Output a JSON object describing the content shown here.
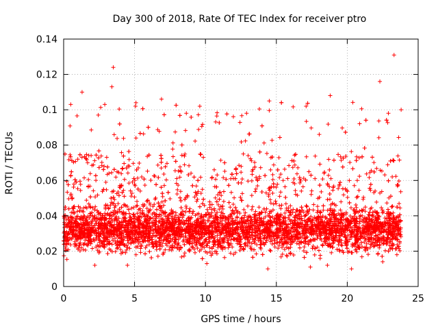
{
  "chart_data": {
    "type": "scatter",
    "title": "Day 300 of 2018, Rate Of TEC Index for receiver ptro",
    "xlabel": "GPS time / hours",
    "ylabel": "ROTI / TECUs",
    "xlim": [
      0,
      25
    ],
    "ylim": [
      0,
      0.14
    ],
    "x_ticks": [
      0,
      5,
      10,
      15,
      20,
      25
    ],
    "y_ticks": [
      0,
      0.02,
      0.04,
      0.06,
      0.08,
      0.1,
      0.12,
      0.14
    ],
    "x_tick_labels": [
      "0",
      "5",
      "10",
      "15",
      "20",
      "25"
    ],
    "y_tick_labels": [
      "0",
      "0.02",
      "0.04",
      "0.06",
      "0.08",
      "0.1",
      "0.12",
      "0.14"
    ],
    "grid": true,
    "marker": "+",
    "marker_color": "#ff0000",
    "series": [
      {
        "name": "ROTI",
        "description_of_distribution": "dense cloud, core 0.02-0.045, spikes to ~0.105",
        "x_range": [
          0,
          23.8
        ],
        "notable_points": [
          {
            "x": 3.5,
            "y": 0.124
          },
          {
            "x": 3.4,
            "y": 0.113
          },
          {
            "x": 1.3,
            "y": 0.11
          },
          {
            "x": 22.3,
            "y": 0.116
          },
          {
            "x": 23.3,
            "y": 0.131
          },
          {
            "x": 14.5,
            "y": 0.105
          },
          {
            "x": 5.1,
            "y": 0.104
          },
          {
            "x": 0.5,
            "y": 0.103
          },
          {
            "x": 9.6,
            "y": 0.102
          },
          {
            "x": 18.8,
            "y": 0.108
          },
          {
            "x": 17.1,
            "y": 0.102
          },
          {
            "x": 6.9,
            "y": 0.106
          },
          {
            "x": 12.9,
            "y": 0.098
          },
          {
            "x": 2.9,
            "y": 0.103
          },
          {
            "x": 22.9,
            "y": 0.098
          },
          {
            "x": 23.8,
            "y": 0.1
          },
          {
            "x": 2.2,
            "y": 0.012
          },
          {
            "x": 4.5,
            "y": 0.012
          },
          {
            "x": 10.1,
            "y": 0.013
          },
          {
            "x": 14.4,
            "y": 0.01
          },
          {
            "x": 17.4,
            "y": 0.011
          },
          {
            "x": 18.6,
            "y": 0.012
          },
          {
            "x": 20.3,
            "y": 0.01
          },
          {
            "x": 22.5,
            "y": 0.014
          },
          {
            "x": 23.5,
            "y": 0.018
          }
        ]
      }
    ]
  }
}
